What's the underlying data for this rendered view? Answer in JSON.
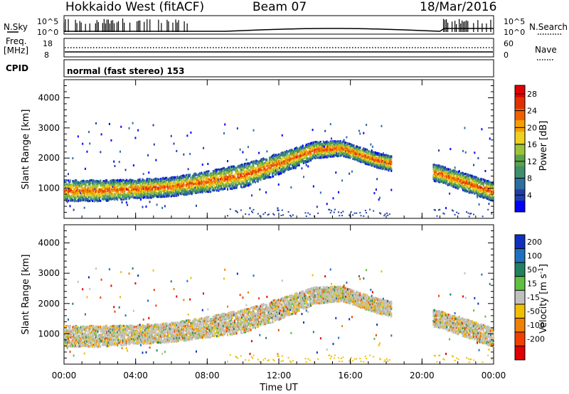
{
  "header": {
    "radar": "Hokkaido West (fitACF)",
    "beam": "Beam 07",
    "date": "18/Mar/2016"
  },
  "panels": {
    "nsky_label": "N.Sky",
    "nsearch_label": "N.Search",
    "nsky_ticks": [
      "10^5",
      "10^0"
    ],
    "freq_label_1": "Freq.",
    "freq_label_2": "[MHz]",
    "freq_ticks": [
      "18",
      "8"
    ],
    "nave_label": "Nave",
    "nave_ticks": [
      "60",
      "0"
    ],
    "cpid_label": "CPID",
    "cpid_text": "normal (fast stereo) 153"
  },
  "chart_data": [
    {
      "type": "heatmap",
      "name": "power",
      "ylabel": "Slant Range [km]",
      "xlabel": "",
      "y_ticks": [
        1000,
        2000,
        3000,
        4000
      ],
      "ylim": [
        0,
        4600
      ],
      "x_ticks": [
        "00:00",
        "04:00",
        "08:00",
        "12:00",
        "16:00",
        "20:00",
        "00:00"
      ],
      "colorbar": {
        "label": "Power [dB]",
        "ticks": [
          4,
          8,
          12,
          16,
          20,
          24,
          28
        ],
        "colors": [
          "#0000ff",
          "#1f3fa6",
          "#2e6e9e",
          "#3f8f6c",
          "#5aa34a",
          "#9bc43a",
          "#f0d020",
          "#f4a000",
          "#f06000",
          "#e03000",
          "#e00000"
        ]
      },
      "echo_band": [
        {
          "hour": 0,
          "center_km": 950,
          "width_km": 500
        },
        {
          "hour": 2,
          "center_km": 950,
          "width_km": 500
        },
        {
          "hour": 4,
          "center_km": 1000,
          "width_km": 450
        },
        {
          "hour": 6,
          "center_km": 1080,
          "width_km": 450
        },
        {
          "hour": 8,
          "center_km": 1250,
          "width_km": 500
        },
        {
          "hour": 10,
          "center_km": 1450,
          "width_km": 550
        },
        {
          "hour": 12,
          "center_km": 1850,
          "width_km": 500
        },
        {
          "hour": 14,
          "center_km": 2300,
          "width_km": 400
        },
        {
          "hour": 15.5,
          "center_km": 2350,
          "width_km": 350
        },
        {
          "hour": 17.5,
          "center_km": 1950,
          "width_km": 350
        },
        {
          "hour": 21,
          "center_km": 1500,
          "width_km": 400
        },
        {
          "hour": 24,
          "center_km": 900,
          "width_km": 450
        }
      ]
    },
    {
      "type": "heatmap",
      "name": "velocity",
      "ylabel": "Slant Range [km]",
      "xlabel": "Time UT",
      "y_ticks": [
        1000,
        2000,
        3000,
        4000
      ],
      "ylim": [
        0,
        4600
      ],
      "x_ticks": [
        "00:00",
        "04:00",
        "08:00",
        "12:00",
        "16:00",
        "20:00",
        "00:00"
      ],
      "colorbar": {
        "label": "Velocity [m s",
        "label_sup": "-1",
        "label_end": "]",
        "ticks": [
          "200",
          "100",
          "50",
          "15",
          "-15",
          "-50",
          "-100",
          "-200"
        ],
        "colors": [
          "#1030c0",
          "#2070c0",
          "#208060",
          "#60c040",
          "#c0c0c0",
          "#f0c000",
          "#f08000",
          "#f04000",
          "#e00000"
        ]
      }
    }
  ]
}
